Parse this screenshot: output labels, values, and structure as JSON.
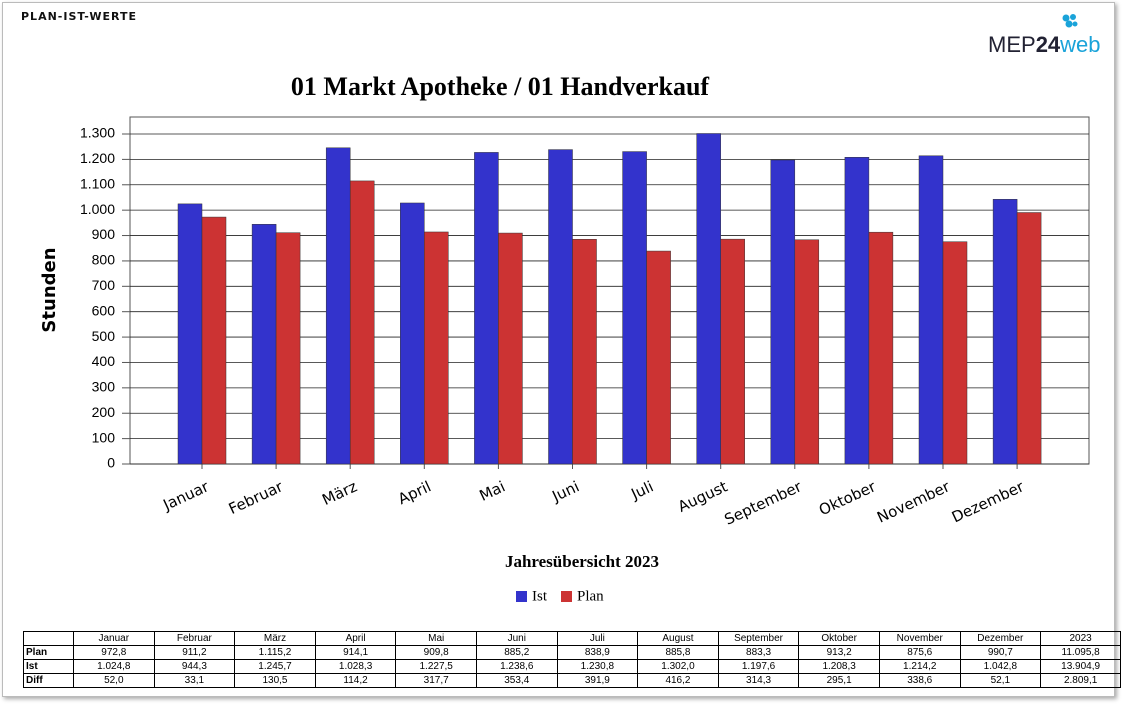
{
  "header": {
    "title": "PLAN-IST-WERTE"
  },
  "logo": {
    "part1": "MEP",
    "part2": "24",
    "part3": "web"
  },
  "chart_data": {
    "type": "bar",
    "title": "01 Markt Apotheke / 01 Handverkauf",
    "x_label": "Jahresübersicht 2023",
    "y_label": "Stunden",
    "categories": [
      "Januar",
      "Februar",
      "März",
      "April",
      "Mai",
      "Juni",
      "Juli",
      "August",
      "September",
      "Oktober",
      "November",
      "Dezember"
    ],
    "series": [
      {
        "name": "Ist",
        "color": "#3333cc",
        "values": [
          1024.8,
          944.3,
          1245.7,
          1028.3,
          1227.5,
          1238.6,
          1230.8,
          1302.0,
          1197.6,
          1208.3,
          1214.2,
          1042.8
        ]
      },
      {
        "name": "Plan",
        "color": "#cc3333",
        "values": [
          972.8,
          911.2,
          1115.2,
          914.1,
          909.8,
          885.2,
          838.9,
          885.8,
          883.3,
          913.2,
          875.6,
          990.7
        ]
      }
    ],
    "ylim": [
      0,
      1367
    ],
    "yticks": [
      0,
      100,
      200,
      300,
      400,
      500,
      600,
      700,
      800,
      900,
      {
        "value": 1000,
        "label": "1.000"
      },
      {
        "value": 1100,
        "label": "1.100"
      },
      {
        "value": 1200,
        "label": "1.200"
      },
      {
        "value": 1300,
        "label": "1.300"
      }
    ],
    "grid": true,
    "legend": "bottom"
  },
  "table": {
    "header": [
      "Januar",
      "Februar",
      "März",
      "April",
      "Mai",
      "Juni",
      "Juli",
      "August",
      "September",
      "Oktober",
      "November",
      "Dezember",
      "2023"
    ],
    "rows": [
      {
        "label": "Plan",
        "cells": [
          "972,8",
          "911,2",
          "1.115,2",
          "914,1",
          "909,8",
          "885,2",
          "838,9",
          "885,8",
          "883,3",
          "913,2",
          "875,6",
          "990,7",
          "11.095,8"
        ]
      },
      {
        "label": "Ist",
        "cells": [
          "1.024,8",
          "944,3",
          "1.245,7",
          "1.028,3",
          "1.227,5",
          "1.238,6",
          "1.230,8",
          "1.302,0",
          "1.197,6",
          "1.208,3",
          "1.214,2",
          "1.042,8",
          "13.904,9"
        ]
      },
      {
        "label": "Diff",
        "cells": [
          "52,0",
          "33,1",
          "130,5",
          "114,2",
          "317,7",
          "353,4",
          "391,9",
          "416,2",
          "314,3",
          "295,1",
          "338,6",
          "52,1",
          "2.809,1"
        ]
      }
    ]
  }
}
